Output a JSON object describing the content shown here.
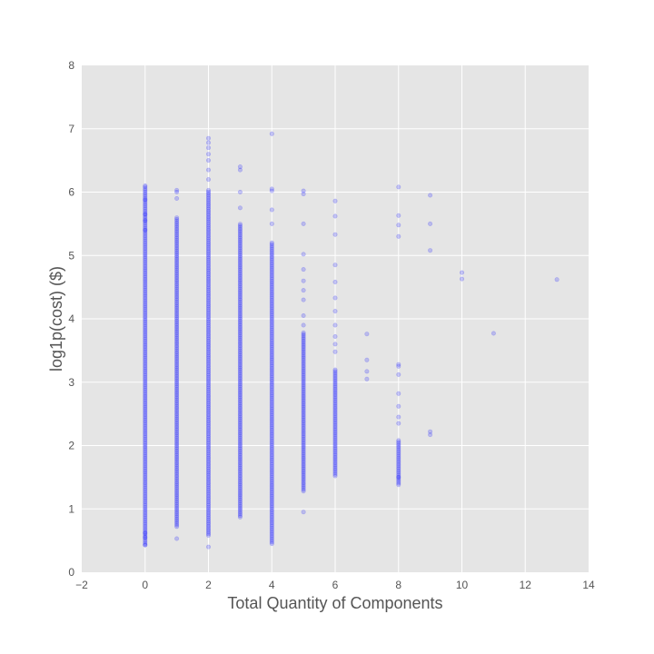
{
  "chart_data": {
    "type": "scatter",
    "title": "",
    "xlabel": "Total Quantity of Components",
    "ylabel": "log1p(cost) ($)",
    "xlim": [
      -2,
      14
    ],
    "ylim": [
      0,
      8
    ],
    "xticks": [
      "−2",
      "0",
      "2",
      "4",
      "6",
      "8",
      "10",
      "12",
      "14"
    ],
    "yticks": [
      "0",
      "1",
      "2",
      "3",
      "4",
      "5",
      "6",
      "7",
      "8"
    ],
    "grid": true,
    "background": "#e5e5e5",
    "grid_color": "#ffffff",
    "point_color": "#2020ff",
    "series": [
      {
        "x_groups": [
          {
            "x": 0,
            "range": [
              0.43,
              6.1
            ],
            "sparse": [
              0.43,
              0.55,
              0.62,
              5.4,
              5.55,
              5.65,
              5.88,
              6.1
            ]
          },
          {
            "x": 1,
            "range": [
              0.72,
              5.6
            ],
            "sparse": [
              0.53,
              5.9,
              6.0,
              6.03
            ]
          },
          {
            "x": 2,
            "range": [
              0.58,
              6.05
            ],
            "sparse": [
              0.4,
              6.2,
              6.35,
              6.5,
              6.6,
              6.7,
              6.78,
              6.85
            ]
          },
          {
            "x": 3,
            "range": [
              0.87,
              5.5
            ],
            "sparse": [
              5.75,
              6.0,
              6.35,
              6.4
            ]
          },
          {
            "x": 4,
            "range": [
              0.45,
              5.2
            ],
            "sparse": [
              5.5,
              5.72,
              6.02,
              6.05,
              6.92
            ]
          },
          {
            "x": 5,
            "range": [
              1.28,
              3.8
            ],
            "sparse": [
              0.95,
              3.9,
              4.05,
              4.3,
              4.45,
              4.6,
              4.78,
              5.02,
              5.5,
              5.97,
              6.02
            ]
          },
          {
            "x": 6,
            "range": [
              1.52,
              3.2
            ],
            "sparse": [
              3.48,
              3.6,
              3.72,
              3.9,
              4.12,
              4.33,
              4.58,
              4.85,
              5.33,
              5.62,
              5.86
            ]
          },
          {
            "x": 7,
            "range": null,
            "sparse": [
              3.05,
              3.17,
              3.35,
              3.76
            ]
          },
          {
            "x": 8,
            "range": [
              1.38,
              2.1
            ],
            "sparse": [
              1.5,
              2.35,
              2.45,
              2.62,
              2.82,
              3.12,
              3.25,
              3.28,
              5.3,
              5.48,
              5.63,
              6.08
            ]
          },
          {
            "x": 9,
            "range": null,
            "sparse": [
              2.17,
              2.22,
              5.08,
              5.5,
              5.95
            ]
          },
          {
            "x": 10,
            "range": null,
            "sparse": [
              4.63,
              4.73
            ]
          },
          {
            "x": 11,
            "range": null,
            "sparse": [
              3.77
            ]
          },
          {
            "x": 13,
            "range": null,
            "sparse": [
              4.62
            ]
          }
        ]
      }
    ]
  }
}
